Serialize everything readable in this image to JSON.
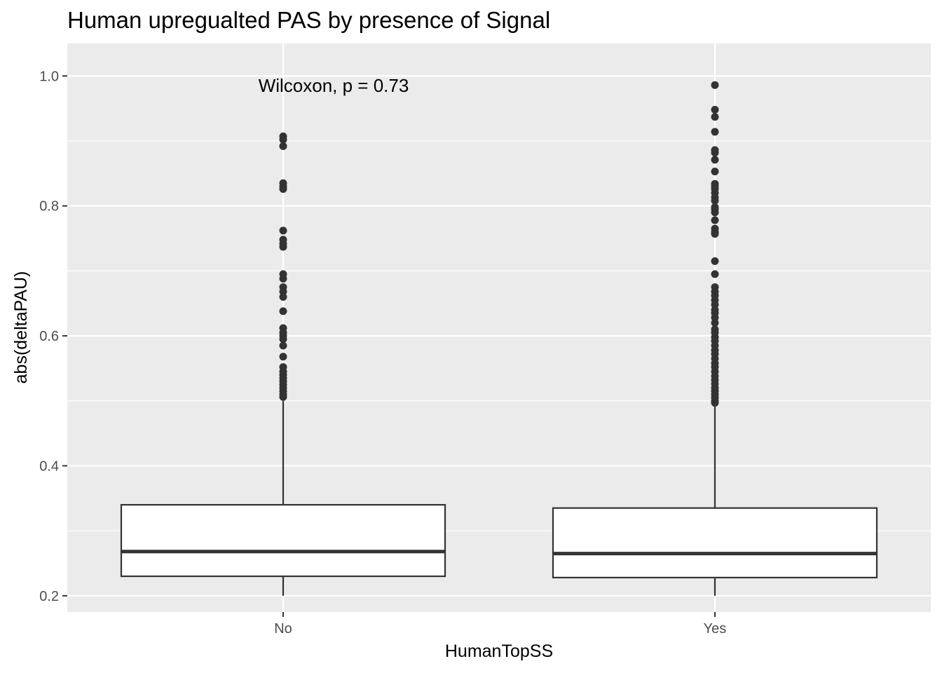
{
  "chart_data": {
    "type": "boxplot",
    "title": "Human upregualted PAS by presence of Signal",
    "xlabel": "HumanTopSS",
    "ylabel": "abs(deltaPAU)",
    "categories": [
      "No",
      "Yes"
    ],
    "ylim": [
      0.175,
      1.05
    ],
    "yticks": [
      0.2,
      0.4,
      0.6,
      0.8,
      1.0
    ],
    "ytick_labels": [
      "0.2",
      "0.4",
      "0.6",
      "0.8",
      "1.0"
    ],
    "grid": true,
    "annotation": {
      "text": "Wilcoxon, p = 0.73",
      "x": "No",
      "y": 0.985
    },
    "boxes": [
      {
        "category": "No",
        "lower_whisker": 0.2,
        "q1": 0.23,
        "median": 0.268,
        "q3": 0.34,
        "upper_whisker": 0.5,
        "outliers": [
          0.907,
          0.902,
          0.892,
          0.835,
          0.83,
          0.826,
          0.762,
          0.748,
          0.742,
          0.737,
          0.695,
          0.688,
          0.675,
          0.668,
          0.66,
          0.638,
          0.612,
          0.605,
          0.6,
          0.595,
          0.585,
          0.568,
          0.552,
          0.545,
          0.54,
          0.535,
          0.53,
          0.525,
          0.52,
          0.515,
          0.51,
          0.506
        ]
      },
      {
        "category": "Yes",
        "lower_whisker": 0.2,
        "q1": 0.228,
        "median": 0.265,
        "q3": 0.335,
        "upper_whisker": 0.495,
        "outliers": [
          0.986,
          0.948,
          0.937,
          0.914,
          0.886,
          0.882,
          0.871,
          0.853,
          0.834,
          0.83,
          0.826,
          0.82,
          0.813,
          0.808,
          0.798,
          0.795,
          0.79,
          0.778,
          0.765,
          0.76,
          0.757,
          0.715,
          0.695,
          0.675,
          0.668,
          0.662,
          0.655,
          0.648,
          0.64,
          0.635,
          0.628,
          0.62,
          0.61,
          0.605,
          0.598,
          0.592,
          0.585,
          0.578,
          0.572,
          0.565,
          0.558,
          0.552,
          0.545,
          0.538,
          0.532,
          0.526,
          0.52,
          0.515,
          0.51,
          0.505,
          0.5,
          0.497
        ]
      }
    ]
  }
}
